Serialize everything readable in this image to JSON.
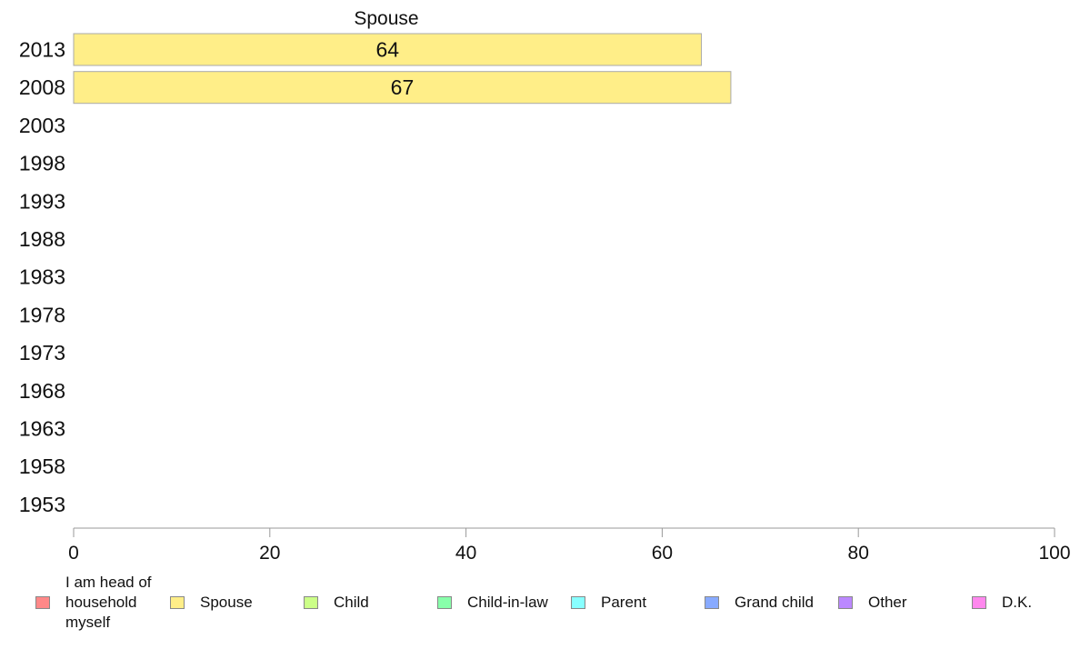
{
  "chart_data": {
    "type": "bar",
    "orientation": "horizontal",
    "title": "Spouse",
    "categories": [
      "2013",
      "2008",
      "2003",
      "1998",
      "1993",
      "1988",
      "1983",
      "1978",
      "1973",
      "1968",
      "1963",
      "1958",
      "1953"
    ],
    "series": [
      {
        "name": "Spouse",
        "color": "#ffee88",
        "values": [
          64,
          67,
          null,
          null,
          null,
          null,
          null,
          null,
          null,
          null,
          null,
          null,
          null
        ]
      }
    ],
    "xlim": [
      0,
      100
    ],
    "xticks": [
      0,
      20,
      40,
      60,
      80,
      100
    ],
    "grid": false,
    "legend_position": "bottom"
  },
  "legend": [
    {
      "label": "I am head of\nhousehold\nmyself",
      "color": "#ff8888"
    },
    {
      "label": "Spouse",
      "color": "#ffee88"
    },
    {
      "label": "Child",
      "color": "#ccff88"
    },
    {
      "label": "Child-in-law",
      "color": "#88ffaa"
    },
    {
      "label": "Parent",
      "color": "#88ffff"
    },
    {
      "label": "Grand child",
      "color": "#88aaff"
    },
    {
      "label": "Other",
      "color": "#bb88ff"
    },
    {
      "label": "D.K.",
      "color": "#ff88ee"
    }
  ]
}
